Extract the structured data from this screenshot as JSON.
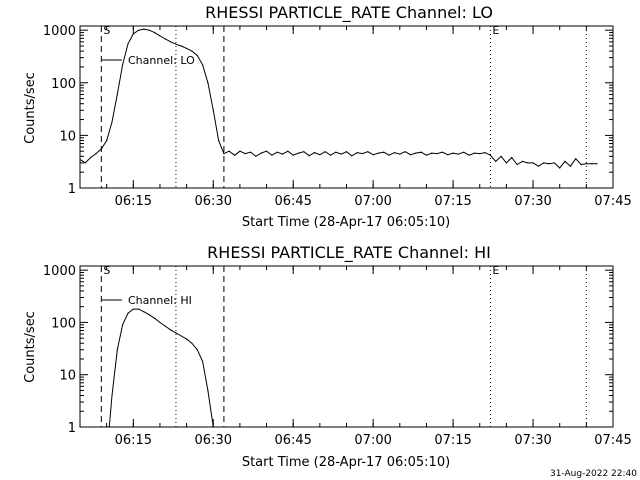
{
  "footer_timestamp": "31-Aug-2022 22:40",
  "colors": {
    "background": "#ffffff",
    "foreground": "#000000"
  },
  "chart_data": [
    {
      "type": "line",
      "title": "RHESSI PARTICLE_RATE Channel: LO",
      "xlabel": "Start Time (28-Apr-17 06:05:10)",
      "ylabel": "Counts/sec",
      "yscale": "log",
      "xlim": [
        "06:05",
        "07:45"
      ],
      "ylim": [
        1,
        1200
      ],
      "x_ticks": [
        "06:15",
        "06:30",
        "06:45",
        "07:00",
        "07:15",
        "07:30",
        "07:45"
      ],
      "y_ticks": [
        {
          "value": 1,
          "label": "1"
        },
        {
          "value": 10,
          "label": "10"
        },
        {
          "value": 100,
          "label": "100"
        },
        {
          "value": 1000,
          "label": "1000"
        }
      ],
      "legend": {
        "label": "Channel: LO",
        "placement": "top-left"
      },
      "markers": [
        {
          "x": "06:09",
          "label": "S",
          "style": "dashed"
        },
        {
          "x": "06:32",
          "label": "",
          "style": "dashed"
        },
        {
          "x": "06:23",
          "label": "",
          "style": "dotted"
        },
        {
          "x": "07:22",
          "label": "E",
          "style": "dotted"
        },
        {
          "x": "07:40",
          "label": "",
          "style": "dotted"
        }
      ],
      "series": [
        {
          "name": "Channel: LO",
          "points": [
            [
              "06:05",
              3.5
            ],
            [
              "06:06",
              3.0
            ],
            [
              "06:07",
              3.8
            ],
            [
              "06:08",
              4.5
            ],
            [
              "06:09",
              5.5
            ],
            [
              "06:10",
              8
            ],
            [
              "06:11",
              18
            ],
            [
              "06:12",
              60
            ],
            [
              "06:13",
              220
            ],
            [
              "06:14",
              550
            ],
            [
              "06:15",
              850
            ],
            [
              "06:16",
              1000
            ],
            [
              "06:17",
              1050
            ],
            [
              "06:18",
              1000
            ],
            [
              "06:19",
              900
            ],
            [
              "06:20",
              780
            ],
            [
              "06:21",
              680
            ],
            [
              "06:22",
              600
            ],
            [
              "06:23",
              540
            ],
            [
              "06:24",
              500
            ],
            [
              "06:25",
              450
            ],
            [
              "06:26",
              400
            ],
            [
              "06:27",
              330
            ],
            [
              "06:28",
              220
            ],
            [
              "06:29",
              100
            ],
            [
              "06:30",
              30
            ],
            [
              "06:31",
              8
            ],
            [
              "06:32",
              4.5
            ],
            [
              "06:33",
              5.0
            ],
            [
              "06:34",
              4.2
            ],
            [
              "06:35",
              5.0
            ],
            [
              "06:36",
              4.5
            ],
            [
              "06:37",
              4.8
            ],
            [
              "06:38",
              4.0
            ],
            [
              "06:39",
              4.6
            ],
            [
              "06:40",
              5.0
            ],
            [
              "06:41",
              4.2
            ],
            [
              "06:42",
              4.8
            ],
            [
              "06:43",
              4.4
            ],
            [
              "06:44",
              5.0
            ],
            [
              "06:45",
              4.2
            ],
            [
              "06:46",
              4.6
            ],
            [
              "06:47",
              4.9
            ],
            [
              "06:48",
              4.1
            ],
            [
              "06:49",
              4.7
            ],
            [
              "06:50",
              4.3
            ],
            [
              "06:51",
              4.9
            ],
            [
              "06:52",
              4.2
            ],
            [
              "06:53",
              4.8
            ],
            [
              "06:54",
              4.4
            ],
            [
              "06:55",
              4.9
            ],
            [
              "06:56",
              4.1
            ],
            [
              "06:57",
              4.7
            ],
            [
              "06:58",
              4.5
            ],
            [
              "06:59",
              4.9
            ],
            [
              "07:00",
              4.3
            ],
            [
              "07:01",
              4.6
            ],
            [
              "07:02",
              4.8
            ],
            [
              "07:03",
              4.2
            ],
            [
              "07:04",
              4.7
            ],
            [
              "07:05",
              4.4
            ],
            [
              "07:06",
              4.9
            ],
            [
              "07:07",
              4.3
            ],
            [
              "07:08",
              4.6
            ],
            [
              "07:09",
              4.8
            ],
            [
              "07:10",
              4.2
            ],
            [
              "07:11",
              4.6
            ],
            [
              "07:12",
              4.5
            ],
            [
              "07:13",
              4.8
            ],
            [
              "07:14",
              4.3
            ],
            [
              "07:15",
              4.6
            ],
            [
              "07:16",
              4.4
            ],
            [
              "07:17",
              4.8
            ],
            [
              "07:18",
              4.2
            ],
            [
              "07:19",
              4.6
            ],
            [
              "07:20",
              4.5
            ],
            [
              "07:21",
              4.7
            ],
            [
              "07:22",
              4.2
            ],
            [
              "07:23",
              3.2
            ],
            [
              "07:24",
              4.0
            ],
            [
              "07:25",
              3.0
            ],
            [
              "07:26",
              3.8
            ],
            [
              "07:27",
              2.8
            ],
            [
              "07:28",
              3.2
            ],
            [
              "07:29",
              3.0
            ],
            [
              "07:30",
              3.0
            ],
            [
              "07:31",
              2.6
            ],
            [
              "07:32",
              3.0
            ],
            [
              "07:33",
              2.9
            ],
            [
              "07:34",
              3.0
            ],
            [
              "07:35",
              2.4
            ],
            [
              "07:36",
              3.2
            ],
            [
              "07:37",
              2.6
            ],
            [
              "07:38",
              3.6
            ],
            [
              "07:39",
              2.8
            ],
            [
              "07:40",
              2.9
            ],
            [
              "07:41",
              2.9
            ],
            [
              "07:42",
              2.9
            ]
          ]
        }
      ]
    },
    {
      "type": "line",
      "title": "RHESSI PARTICLE_RATE Channel: HI",
      "xlabel": "Start Time (28-Apr-17 06:05:10)",
      "ylabel": "Counts/sec",
      "yscale": "log",
      "xlim": [
        "06:05",
        "07:45"
      ],
      "ylim": [
        1,
        1200
      ],
      "x_ticks": [
        "06:15",
        "06:30",
        "06:45",
        "07:00",
        "07:15",
        "07:30",
        "07:45"
      ],
      "y_ticks": [
        {
          "value": 1,
          "label": "1"
        },
        {
          "value": 10,
          "label": "10"
        },
        {
          "value": 100,
          "label": "100"
        },
        {
          "value": 1000,
          "label": "1000"
        }
      ],
      "legend": {
        "label": "Channel: HI",
        "placement": "top-left"
      },
      "markers": [
        {
          "x": "06:09",
          "label": "S",
          "style": "dashed"
        },
        {
          "x": "06:32",
          "label": "",
          "style": "dashed"
        },
        {
          "x": "06:23",
          "label": "",
          "style": "dotted"
        },
        {
          "x": "07:22",
          "label": "E",
          "style": "dotted"
        },
        {
          "x": "07:40",
          "label": "",
          "style": "dotted"
        }
      ],
      "series": [
        {
          "name": "Channel: HI",
          "points": [
            [
              "06:10.5",
              1.0
            ],
            [
              "06:11",
              4
            ],
            [
              "06:12",
              30
            ],
            [
              "06:13",
              90
            ],
            [
              "06:14",
              150
            ],
            [
              "06:15",
              180
            ],
            [
              "06:16",
              180
            ],
            [
              "06:17",
              160
            ],
            [
              "06:18",
              140
            ],
            [
              "06:19",
              120
            ],
            [
              "06:20",
              100
            ],
            [
              "06:21",
              85
            ],
            [
              "06:22",
              72
            ],
            [
              "06:23",
              63
            ],
            [
              "06:24",
              55
            ],
            [
              "06:25",
              48
            ],
            [
              "06:26",
              40
            ],
            [
              "06:27",
              30
            ],
            [
              "06:28",
              18
            ],
            [
              "06:29",
              5
            ],
            [
              "06:30",
              1.0
            ]
          ]
        }
      ]
    }
  ]
}
